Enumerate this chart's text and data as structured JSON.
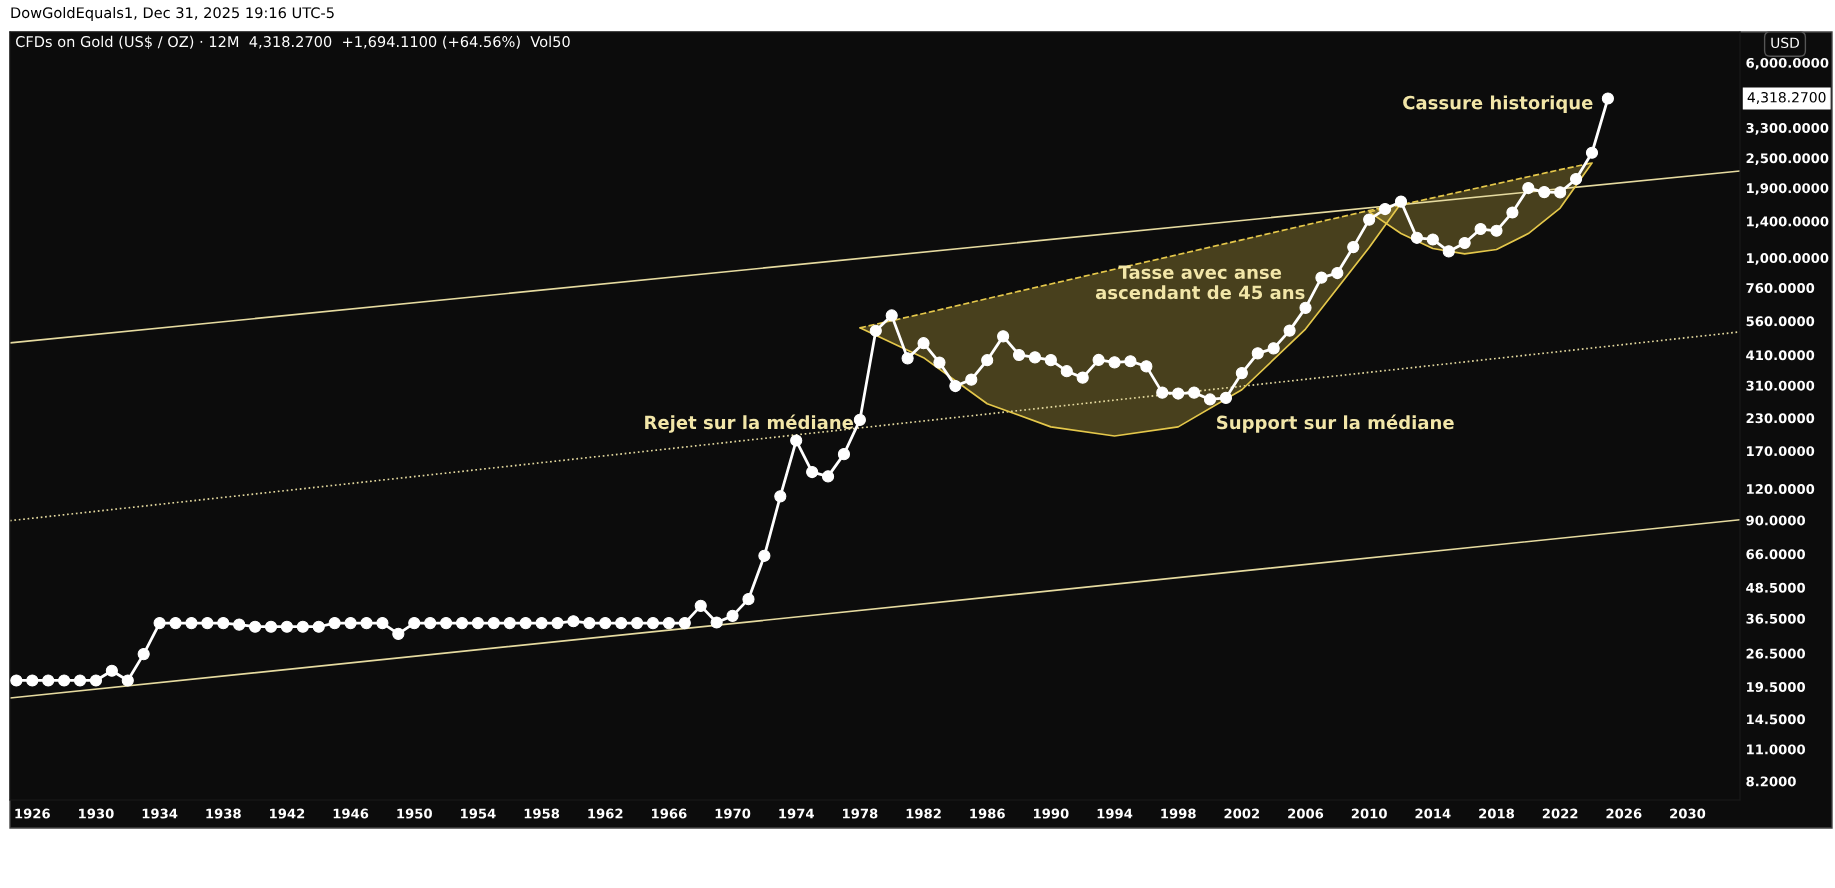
{
  "chart_data": {
    "type": "line",
    "title": "CFDs on Gold (US$ / OZ) · 12M  4,318.2700  +1,694.1100 (+64.56%)  Vol50",
    "x": [
      1925,
      1926,
      1927,
      1928,
      1929,
      1930,
      1931,
      1932,
      1933,
      1934,
      1935,
      1936,
      1937,
      1938,
      1939,
      1940,
      1941,
      1942,
      1943,
      1944,
      1945,
      1946,
      1947,
      1948,
      1949,
      1950,
      1951,
      1952,
      1953,
      1954,
      1955,
      1956,
      1957,
      1958,
      1959,
      1960,
      1961,
      1962,
      1963,
      1964,
      1965,
      1966,
      1967,
      1968,
      1969,
      1970,
      1971,
      1972,
      1973,
      1974,
      1975,
      1976,
      1977,
      1978,
      1979,
      1980,
      1981,
      1982,
      1983,
      1984,
      1985,
      1986,
      1987,
      1988,
      1989,
      1990,
      1991,
      1992,
      1993,
      1994,
      1995,
      1996,
      1997,
      1998,
      1999,
      2000,
      2001,
      2002,
      2003,
      2004,
      2005,
      2006,
      2007,
      2008,
      2009,
      2010,
      2011,
      2012,
      2013,
      2014,
      2015,
      2016,
      2017,
      2018,
      2019,
      2020,
      2021,
      2022,
      2023,
      2024,
      2025
    ],
    "series": [
      {
        "type": "line",
        "color": "#ffffff",
        "marker": "circle",
        "line_style": "solid",
        "values": [
          20.67,
          20.67,
          20.67,
          20.67,
          20.67,
          20.67,
          22.6,
          20.67,
          26.33,
          35,
          35,
          35,
          35,
          35,
          34.5,
          33.85,
          33.85,
          33.85,
          33.85,
          33.85,
          35,
          35,
          35,
          35,
          31.7,
          35,
          35,
          35,
          35,
          35,
          35,
          35,
          35,
          35,
          35,
          35.6,
          35,
          35,
          35,
          35,
          35,
          35,
          35,
          41,
          35.2,
          37.4,
          43.6,
          64.9,
          112,
          187,
          140,
          134.5,
          165,
          226,
          512,
          589.5,
          397.5,
          456.9,
          382.4,
          308.3,
          327,
          390.9,
          486.5,
          410.15,
          401,
          391,
          353.4,
          333,
          391.8,
          383.25,
          387,
          369.25,
          290.2,
          287.8,
          290.25,
          272.65,
          276.5,
          347.2,
          416.25,
          435.6,
          513,
          632,
          833.75,
          869.75,
          1104,
          1421,
          1565,
          1675,
          1202,
          1184,
          1061,
          1146,
          1303,
          1282,
          1517,
          1898,
          1829,
          1824,
          2063,
          2624,
          4318.27
        ]
      },
      {
        "type": "line",
        "color": "#e6dba0",
        "marker": "none",
        "line_style": "solid",
        "x": [
          1924.6,
          2033.3
        ],
        "values": [
          458,
          2220
        ]
      },
      {
        "type": "line",
        "color": "#e6dba0",
        "marker": "none",
        "line_style": "dotted",
        "x": [
          1924.6,
          2033.3
        ],
        "values": [
          89.6,
          507
        ]
      },
      {
        "type": "line",
        "color": "#e6dba0",
        "marker": "none",
        "line_style": "solid",
        "x": [
          1924.6,
          2033.3
        ],
        "values": [
          17.6,
          90.4
        ]
      },
      {
        "type": "line",
        "color": "#e5c84b",
        "marker": "none",
        "line_style": "dashed",
        "x": [
          1978,
          1982,
          1986,
          1990,
          1994,
          1998,
          2002,
          2006,
          2010,
          2012
        ],
        "values": [
          526,
          600,
          688,
          787,
          901,
          1031,
          1180,
          1351,
          1545,
          1650
        ]
      },
      {
        "type": "line",
        "color": "#e5c84b",
        "marker": "none",
        "line_style": "solid",
        "x": [
          1978,
          1982,
          1986,
          1990,
          1994,
          1998,
          2002,
          2006,
          2010,
          2012
        ],
        "values": [
          526,
          400,
          262,
          212,
          195,
          212,
          298,
          520,
          1100,
          1650
        ]
      },
      {
        "type": "line",
        "color": "#e5c84b",
        "marker": "none",
        "line_style": "dashed",
        "x": [
          2010,
          2012,
          2014,
          2016,
          2018,
          2020,
          2022,
          2024
        ],
        "values": [
          1525,
          1627,
          1735,
          1851,
          1974,
          2106,
          2247,
          2390
        ]
      },
      {
        "type": "line",
        "color": "#e5c84b",
        "marker": "none",
        "line_style": "solid",
        "x": [
          2010,
          2012,
          2014,
          2016,
          2018,
          2020,
          2022,
          2024
        ],
        "values": [
          1525,
          1250,
          1090,
          1037,
          1080,
          1250,
          1580,
          2390
        ]
      }
    ],
    "log": "y",
    "xlim": [
      1924.6,
      2033.3
    ],
    "ylim": [
      6.9,
      7950
    ],
    "xticks": [
      1926,
      1930,
      1934,
      1938,
      1942,
      1946,
      1950,
      1954,
      1958,
      1962,
      1966,
      1970,
      1974,
      1978,
      1982,
      1986,
      1990,
      1994,
      1998,
      2002,
      2006,
      2010,
      2014,
      2018,
      2022,
      2026,
      2030
    ],
    "yticks": [
      {
        "value": 8.2,
        "label": "8.2000"
      },
      {
        "value": 11,
        "label": "11.0000"
      },
      {
        "value": 14.5,
        "label": "14.5000"
      },
      {
        "value": 19.5,
        "label": "19.5000"
      },
      {
        "value": 26.5,
        "label": "26.5000"
      },
      {
        "value": 36.5,
        "label": "36.5000"
      },
      {
        "value": 48.5,
        "label": "48.5000"
      },
      {
        "value": 66,
        "label": "66.0000"
      },
      {
        "value": 90,
        "label": "90.0000"
      },
      {
        "value": 120,
        "label": "120.0000"
      },
      {
        "value": 170,
        "label": "170.0000"
      },
      {
        "value": 230,
        "label": "230.0000"
      },
      {
        "value": 310,
        "label": "310.0000"
      },
      {
        "value": 410,
        "label": "410.0000"
      },
      {
        "value": 560,
        "label": "560.0000"
      },
      {
        "value": 760,
        "label": "760.0000"
      },
      {
        "value": 1000,
        "label": "1,000.0000"
      },
      {
        "value": 1400,
        "label": "1,400.0000"
      },
      {
        "value": 1900,
        "label": "1,900.0000"
      },
      {
        "value": 2500,
        "label": "2,500.0000"
      },
      {
        "value": 3300,
        "label": "3,300.0000"
      },
      {
        "value": 6000,
        "label": "6,000.0000"
      }
    ],
    "annotations": [
      "DowGoldEquals1, Dec 31, 2025 19:16 UTC-5",
      "USD",
      "4,318.2700",
      "Rejet sur la médiane",
      "Tasse avec anse\nascendant de 45 ans",
      "Support sur la médiane",
      "Cassure historique"
    ]
  }
}
